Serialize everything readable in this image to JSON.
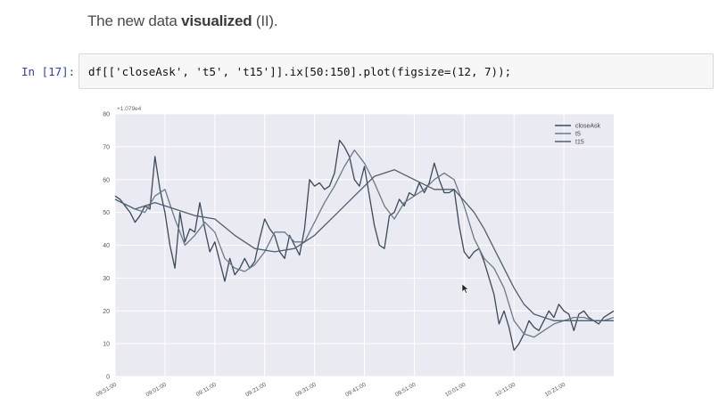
{
  "notebook": {
    "heading_prefix": "The new data ",
    "heading_bold": "visualized",
    "heading_suffix": " (II).",
    "prompt": "In [17]:",
    "code": "df[['closeAsk', 't5', 't15']].ix[50:150].plot(figsize=(12, 7));"
  },
  "chart_data": {
    "type": "line",
    "title": "",
    "offset_label": "+1.079e4",
    "xlabel": "",
    "ylabel": "",
    "ylim": [
      0,
      80
    ],
    "yticks": [
      0,
      10,
      20,
      30,
      40,
      50,
      60,
      70,
      80
    ],
    "xlim": [
      0,
      100
    ],
    "x_tick_positions": [
      0,
      10,
      20,
      30,
      40,
      50,
      60,
      70,
      80,
      90
    ],
    "x_tick_labels": [
      "09:51:00",
      "09:01:00",
      "09:11:00",
      "09:21:00",
      "09:31:00",
      "09:41:00",
      "09:51:00",
      "10:01:00",
      "10:11:00",
      "10:21:00"
    ],
    "grid": true,
    "legend_position": "top-right",
    "series": [
      {
        "name": "closeAsk",
        "color": "#3a4a5a",
        "x": [
          0,
          1,
          2,
          3,
          4,
          5,
          6,
          7,
          8,
          9,
          10,
          11,
          12,
          13,
          14,
          15,
          16,
          17,
          18,
          19,
          20,
          21,
          22,
          23,
          24,
          25,
          26,
          27,
          28,
          29,
          30,
          31,
          32,
          33,
          34,
          35,
          36,
          37,
          38,
          39,
          40,
          41,
          42,
          43,
          44,
          45,
          46,
          47,
          48,
          49,
          50,
          51,
          52,
          53,
          54,
          55,
          56,
          57,
          58,
          59,
          60,
          61,
          62,
          63,
          64,
          65,
          66,
          67,
          68,
          69,
          70,
          71,
          72,
          73,
          74,
          75,
          76,
          77,
          78,
          79,
          80,
          81,
          82,
          83,
          84,
          85,
          86,
          87,
          88,
          89,
          90,
          91,
          92,
          93,
          94,
          95,
          96,
          97,
          98,
          99,
          100
        ],
        "values": [
          55,
          54,
          52,
          50,
          47,
          49,
          52,
          51,
          67,
          57,
          50,
          40,
          33,
          50,
          41,
          45,
          44,
          53,
          45,
          38,
          41,
          35,
          29,
          36,
          31,
          33,
          36,
          33,
          35,
          42,
          48,
          45,
          43,
          38,
          36,
          43,
          40,
          37,
          45,
          60,
          58,
          59,
          57,
          58,
          62,
          72,
          70,
          67,
          60,
          58,
          64,
          55,
          46,
          40,
          39,
          49,
          50,
          54,
          52,
          56,
          55,
          59,
          56,
          59,
          65,
          60,
          56,
          56,
          57,
          46,
          38,
          36,
          38,
          39,
          35,
          30,
          25,
          16,
          20,
          15,
          8,
          10,
          13,
          17,
          15,
          14,
          17,
          20,
          18,
          22,
          20,
          19,
          14,
          19,
          20,
          18,
          17,
          16,
          18,
          19,
          20
        ]
      },
      {
        "name": "t5",
        "color": "#6b7a88",
        "x": [
          0,
          4,
          6,
          8,
          10,
          12,
          14,
          16,
          18,
          20,
          22,
          24,
          26,
          28,
          30,
          32,
          34,
          36,
          38,
          40,
          42,
          44,
          46,
          48,
          50,
          52,
          54,
          56,
          58,
          60,
          62,
          64,
          66,
          68,
          70,
          72,
          74,
          76,
          78,
          80,
          82,
          84,
          86,
          88,
          90,
          92,
          94,
          96,
          98,
          100
        ],
        "values": [
          54,
          51,
          50,
          55,
          57,
          48,
          40,
          43,
          47,
          44,
          36,
          33,
          32,
          34,
          38,
          44,
          44,
          41,
          41,
          47,
          53,
          58,
          64,
          69,
          65,
          59,
          52,
          48,
          53,
          55,
          57,
          60,
          62,
          60,
          52,
          42,
          36,
          33,
          27,
          17,
          13,
          12,
          14,
          16,
          17,
          18,
          18,
          17,
          17,
          18
        ]
      },
      {
        "name": "t15",
        "color": "#4f5f6f",
        "x": [
          0,
          4,
          8,
          12,
          16,
          20,
          24,
          28,
          32,
          36,
          40,
          44,
          48,
          52,
          56,
          60,
          64,
          68,
          72,
          74,
          76,
          78,
          80,
          82,
          84,
          86,
          88,
          90,
          92,
          94,
          96,
          98,
          100
        ],
        "values": [
          54,
          51,
          53,
          51,
          49,
          48,
          43,
          39,
          38,
          39,
          43,
          49,
          55,
          61,
          63,
          60,
          57,
          57,
          50,
          45,
          39,
          33,
          27,
          22,
          19,
          18,
          17,
          17,
          17,
          17,
          17,
          17,
          17
        ]
      }
    ]
  }
}
